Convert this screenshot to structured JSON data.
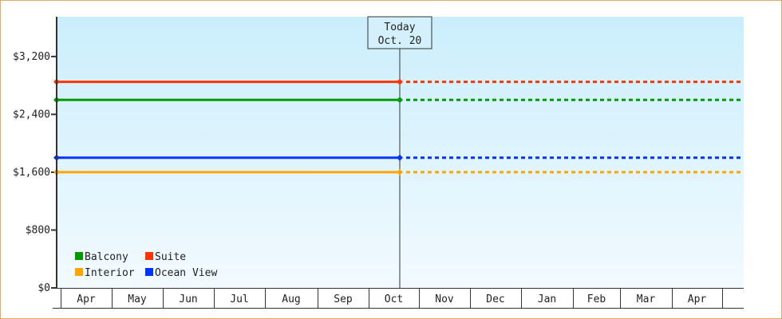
{
  "chart_data": {
    "type": "line",
    "title": "",
    "xlabel": "",
    "ylabel": "",
    "ylim": [
      0,
      3750
    ],
    "y_ticks": [
      "$0",
      "$800",
      "$1,600",
      "$2,400",
      "$3,200"
    ],
    "y_tick_values": [
      0,
      800,
      1600,
      2400,
      3200
    ],
    "x_ticks": [
      "Apr",
      "May",
      "Jun",
      "Jul",
      "Aug",
      "Sep",
      "Oct",
      "Nov",
      "Dec",
      "Jan",
      "Feb",
      "Mar",
      "Apr"
    ],
    "grid": false,
    "legend_position": "bottom-left",
    "today_marker": {
      "label": "Today",
      "date": "Oct. 20"
    },
    "series": [
      {
        "name": "Balcony",
        "color": "#009900",
        "values": [
          2600,
          2600
        ],
        "projected": 2600
      },
      {
        "name": "Suite",
        "color": "#ff3300",
        "values": [
          2850,
          2850
        ],
        "projected": 2850
      },
      {
        "name": "Interior",
        "color": "#ffa500",
        "values": [
          1600,
          1600
        ],
        "projected": 1600
      },
      {
        "name": "Ocean View",
        "color": "#0033ff",
        "values": [
          1800,
          1800
        ],
        "projected": 1800
      }
    ],
    "x_points": [
      "Apr",
      "Oct. 20"
    ],
    "note_style": "solid to today, dashed afterwards"
  }
}
